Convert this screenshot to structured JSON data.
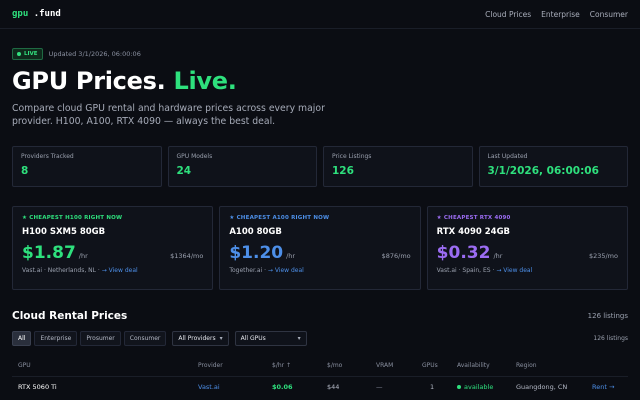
{
  "nav": {
    "logo_gpu": "gpu",
    "logo_fund": ".fund",
    "links": [
      "Cloud Prices",
      "Enterprise",
      "Consumer"
    ]
  },
  "hero": {
    "live_label": "LIVE",
    "updated": "Updated 3/1/2026, 06:00:06",
    "title_main": "GPU Prices.",
    "title_accent": "Live.",
    "subtitle": "Compare cloud GPU rental and hardware prices across every major provider. H100, A100, RTX 4090 — always the best deal."
  },
  "stats": [
    {
      "label": "Providers Tracked",
      "value": "8"
    },
    {
      "label": "GPU Models",
      "value": "24"
    },
    {
      "label": "Price Listings",
      "value": "126"
    },
    {
      "label": "Last Updated",
      "value": "3/1/2026, 06:00:06"
    }
  ],
  "deals": [
    {
      "tag": "★ CHEAPEST H100 RIGHT NOW",
      "gpu": "H100 SXM5 80GB",
      "price": "$1.87",
      "unit": "/hr",
      "monthly": "$1364/mo",
      "meta": "Vast.ai · Netherlands, NL ·",
      "link": "→ View deal",
      "color": "#2ee07d"
    },
    {
      "tag": "★ CHEAPEST A100 RIGHT NOW",
      "gpu": "A100 80GB",
      "price": "$1.20",
      "unit": "/hr",
      "monthly": "$876/mo",
      "meta": "Together.ai ·",
      "link": "→ View deal",
      "color": "#4d8fe8"
    },
    {
      "tag": "★ CHEAPEST RTX 4090",
      "gpu": "RTX 4090 24GB",
      "price": "$0.32",
      "unit": "/hr",
      "monthly": "$235/mo",
      "meta": "Vast.ai · Spain, ES ·",
      "link": "→ View deal",
      "color": "#9b6cf2"
    }
  ],
  "rental": {
    "title": "Cloud Rental Prices",
    "count": "126 listings",
    "filters": [
      "All",
      "Enterprise",
      "Prosumer",
      "Consumer"
    ],
    "provider_select": "All Providers",
    "gpu_select": "All GPUs",
    "listings": "126 listings",
    "columns": [
      "GPU",
      "Provider",
      "$/hr ↑",
      "$/mo",
      "VRAM",
      "GPUs",
      "Availability",
      "Region",
      ""
    ],
    "row": {
      "gpu": "RTX 5060 Ti",
      "provider": "Vast.ai",
      "hr": "$0.06",
      "mo": "$44",
      "vram": "—",
      "gpus": "1",
      "availability": "available",
      "region": "Guangdong, CN",
      "action": "Rent →"
    }
  }
}
